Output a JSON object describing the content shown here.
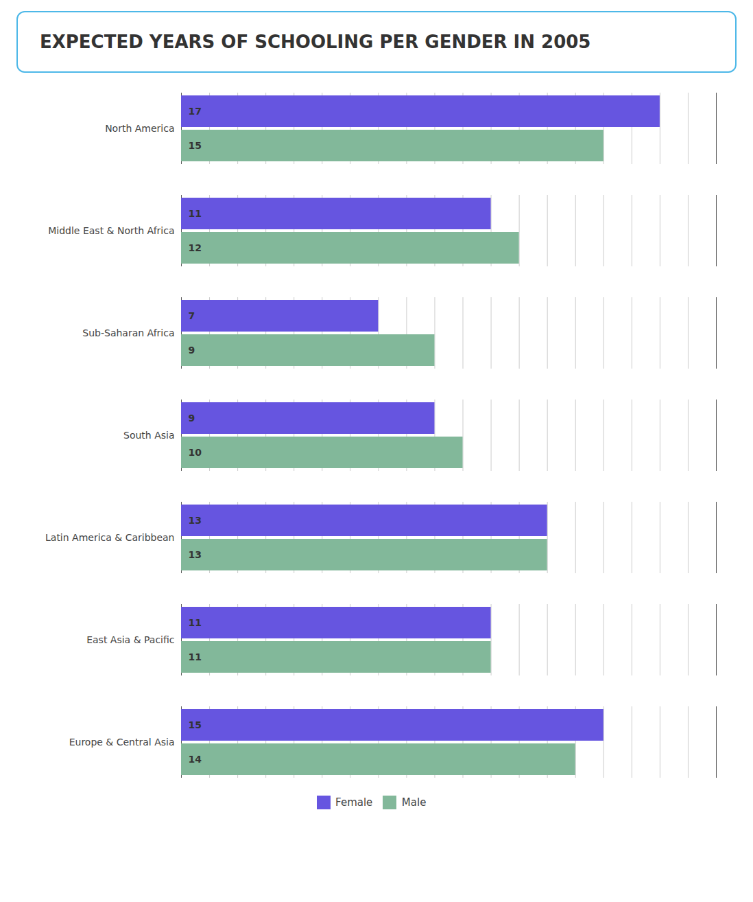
{
  "chart_data": {
    "type": "bar",
    "orientation": "horizontal",
    "title": "EXPECTED YEARS OF SCHOOLING PER GENDER IN 2005",
    "categories": [
      "North America",
      "Middle East & North Africa",
      "Sub-Saharan Africa",
      "South Asia",
      "Latin America & Caribbean",
      "East Asia & Pacific",
      "Europe & Central Asia"
    ],
    "series": [
      {
        "name": "Female",
        "color": "#6655e0",
        "values": [
          17,
          11,
          7,
          9,
          13,
          11,
          15
        ]
      },
      {
        "name": "Male",
        "color": "#82b89a",
        "values": [
          15,
          12,
          9,
          10,
          13,
          11,
          14
        ]
      }
    ],
    "xlim": [
      0,
      19
    ],
    "xticks": [
      1,
      2,
      3,
      4,
      5,
      6,
      7,
      8,
      9,
      10,
      11,
      12,
      13,
      14,
      15,
      16,
      17,
      18
    ],
    "grid": true,
    "data_labels": true,
    "tick_labels": "y",
    "legend": "bottom"
  }
}
